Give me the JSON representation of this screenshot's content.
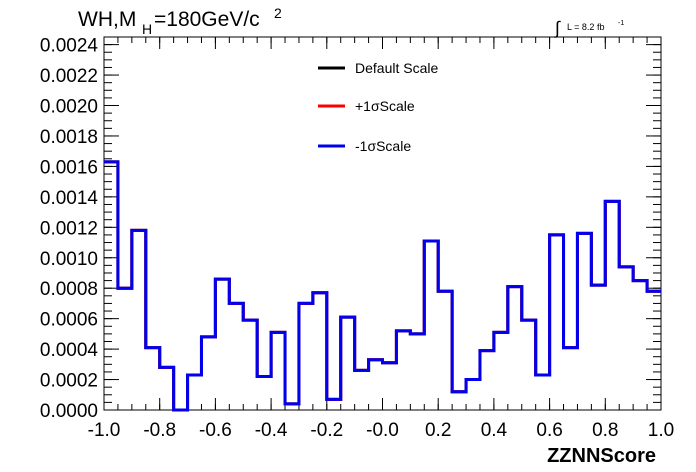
{
  "chart_data": {
    "type": "step",
    "title": {
      "main": "WH,M",
      "subscript": "H",
      "rest": "=180GeV/c",
      "superscript": "2"
    },
    "luminosity": {
      "integral_sign": "∫",
      "label": "L = 8.2 fb",
      "superscript": "-1"
    },
    "xlabel": "ZZNNScore",
    "ylabel": "",
    "xlim": [
      -1.0,
      1.0
    ],
    "ylim": [
      0.0,
      0.00245
    ],
    "x_ticks": [
      "-1.0",
      "-0.8",
      "-0.6",
      "-0.4",
      "-0.2",
      "-0.0",
      "0.2",
      "0.4",
      "0.6",
      "0.8",
      "1.0"
    ],
    "y_ticks": [
      "0.0000",
      "0.0002",
      "0.0004",
      "0.0006",
      "0.0008",
      "0.0010",
      "0.0012",
      "0.0014",
      "0.0016",
      "0.0018",
      "0.0020",
      "0.0022",
      "0.0024"
    ],
    "bin_edges_start": -1.0,
    "bin_width": 0.05,
    "series": [
      {
        "name": "Default Scale",
        "color": "#000000",
        "values": [
          0.00163,
          0.0008,
          0.00118,
          0.00041,
          0.00028,
          0.0,
          0.00023,
          0.00048,
          0.00086,
          0.0007,
          0.00059,
          0.00022,
          0.00051,
          4e-05,
          0.0007,
          0.00077,
          7e-05,
          0.00061,
          0.00026,
          0.00033,
          0.00031,
          0.00052,
          0.0005,
          0.00111,
          0.00078,
          0.00012,
          0.0002,
          0.00039,
          0.00051,
          0.00081,
          0.00059,
          0.00023,
          0.00115,
          0.00041,
          0.00116,
          0.00082,
          0.00137,
          0.00094,
          0.00085,
          0.00078
        ]
      },
      {
        "name": "+1σScale",
        "color": "#ff0000",
        "values": [
          0.00163,
          0.0008,
          0.00118,
          0.00041,
          0.00028,
          0.0,
          0.00023,
          0.00048,
          0.00086,
          0.0007,
          0.00059,
          0.00022,
          0.00051,
          4e-05,
          0.0007,
          0.00077,
          7e-05,
          0.00061,
          0.00026,
          0.00033,
          0.00031,
          0.00052,
          0.0005,
          0.00111,
          0.00078,
          0.00012,
          0.0002,
          0.00039,
          0.00051,
          0.00081,
          0.00059,
          0.00023,
          0.00115,
          0.00041,
          0.00116,
          0.00082,
          0.00137,
          0.00094,
          0.00085,
          0.00078
        ]
      },
      {
        "name": "-1σScale",
        "color": "#0000ee",
        "values": [
          0.00163,
          0.0008,
          0.00118,
          0.00041,
          0.00028,
          0.0,
          0.00023,
          0.00048,
          0.00086,
          0.0007,
          0.00059,
          0.00022,
          0.00051,
          4e-05,
          0.0007,
          0.00077,
          7e-05,
          0.00061,
          0.00026,
          0.00033,
          0.00031,
          0.00052,
          0.0005,
          0.00111,
          0.00078,
          0.00012,
          0.0002,
          0.00039,
          0.00051,
          0.00081,
          0.00059,
          0.00023,
          0.00115,
          0.00041,
          0.00116,
          0.00082,
          0.00137,
          0.00094,
          0.00085,
          0.00078
        ]
      }
    ],
    "legend_position": "top-center",
    "grid": false
  }
}
